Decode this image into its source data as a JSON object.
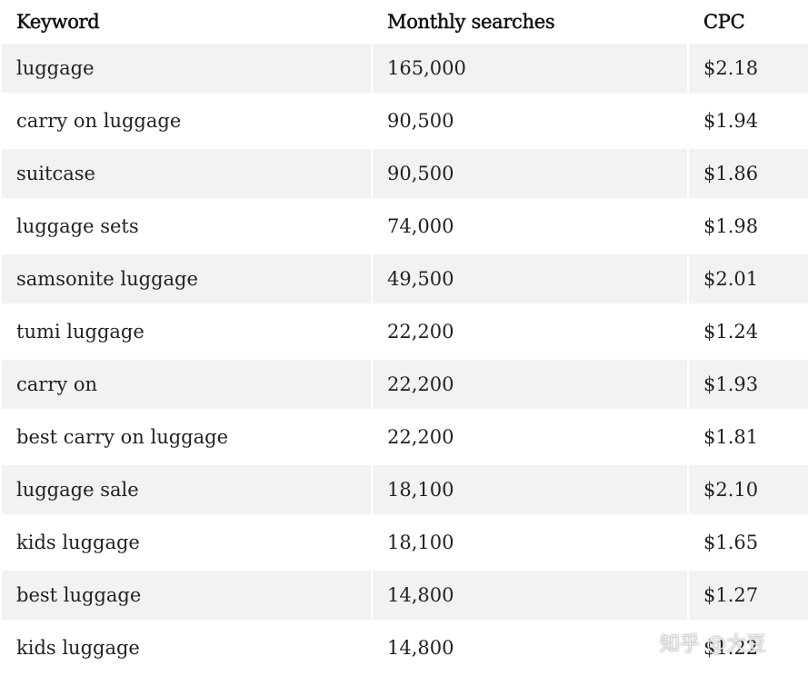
{
  "table": {
    "headers": [
      "Keyword",
      "Monthly searches",
      "CPC"
    ],
    "rows": [
      [
        "luggage",
        "165,000",
        "$2.18"
      ],
      [
        "carry on luggage",
        "90,500",
        "$1.94"
      ],
      [
        "suitcase",
        "90,500",
        "$1.86"
      ],
      [
        "luggage sets",
        "74,000",
        "$1.98"
      ],
      [
        "samsonite luggage",
        "49,500",
        "$2.01"
      ],
      [
        "tumi luggage",
        "22,200",
        "$1.24"
      ],
      [
        "carry on",
        "22,200",
        "$1.93"
      ],
      [
        "best carry on luggage",
        "22,200",
        "$1.81"
      ],
      [
        "luggage sale",
        "18,100",
        "$2.10"
      ],
      [
        "kids luggage",
        "18,100",
        "$1.65"
      ],
      [
        "best luggage",
        "14,800",
        "$1.27"
      ],
      [
        "kids luggage",
        "14,800",
        "$1.22"
      ]
    ]
  },
  "watermark": "知乎 @大豆"
}
